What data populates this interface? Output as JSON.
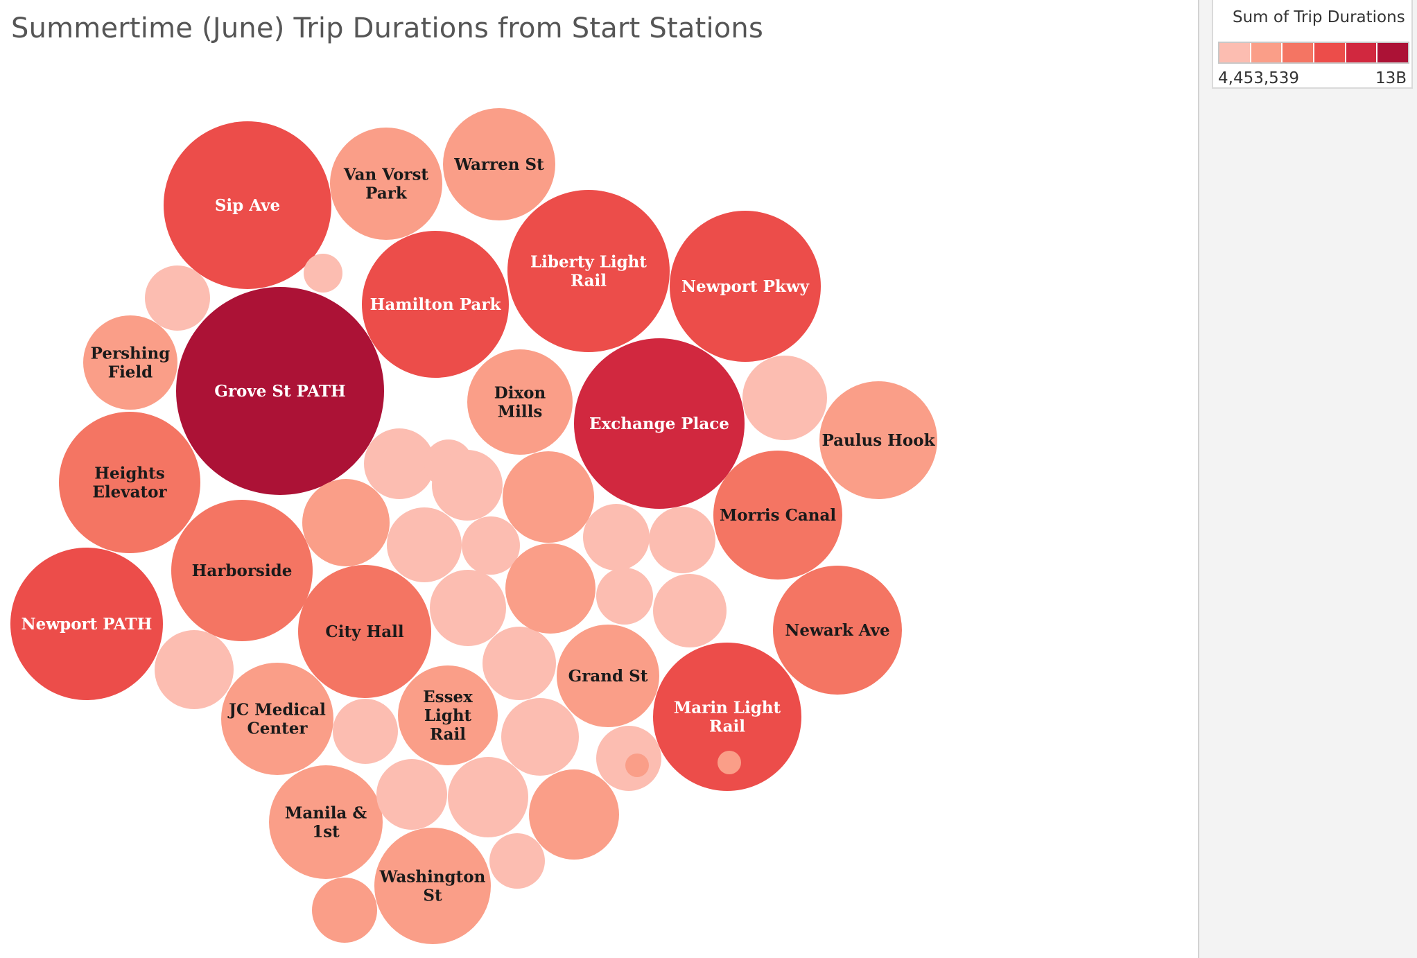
{
  "title": "Summertime (June) Trip Durations from Start Stations",
  "legend": {
    "title": "Sum of Trip Durations",
    "min_label": "4,453,539",
    "max_label": "13B",
    "ramp_colors": [
      "#fcbdb1",
      "#fa9e88",
      "#f47563",
      "#ec4d4a",
      "#d1283f",
      "#ac1236"
    ]
  },
  "colors": {
    "text_dark": "#1a1a1a",
    "text_light": "#ffffff"
  },
  "chart_data": {
    "type": "bubble",
    "measure": "Sum of Trip Durations",
    "series": [
      {
        "label": "Grove St PATH",
        "color_level": 5
      },
      {
        "label": "Exchange Place",
        "color_level": 4
      },
      {
        "label": "Sip Ave",
        "color_level": 3
      },
      {
        "label": "Liberty Light Rail",
        "color_level": 3
      },
      {
        "label": "Newport Pkwy",
        "color_level": 3
      },
      {
        "label": "Hamilton Park",
        "color_level": 3
      },
      {
        "label": "Newport PATH",
        "color_level": 3
      },
      {
        "label": "Marin Light Rail",
        "color_level": 3
      },
      {
        "label": "Heights Elevator",
        "color_level": 2
      },
      {
        "label": "Harborside",
        "color_level": 2
      },
      {
        "label": "City Hall",
        "color_level": 2
      },
      {
        "label": "Morris Canal",
        "color_level": 2
      },
      {
        "label": "Newark Ave",
        "color_level": 2
      },
      {
        "label": "Paulus Hook",
        "color_level": 1
      },
      {
        "label": "Van Vorst Park",
        "color_level": 1
      },
      {
        "label": "Warren St",
        "color_level": 1
      },
      {
        "label": "Dixon Mills",
        "color_level": 1
      },
      {
        "label": "Pershing Field",
        "color_level": 1
      },
      {
        "label": "JC Medical Center",
        "color_level": 1
      },
      {
        "label": "Essex Light Rail",
        "color_level": 1
      },
      {
        "label": "Grand St",
        "color_level": 1
      },
      {
        "label": "Manila & 1st",
        "color_level": 1
      },
      {
        "label": "Washington St",
        "color_level": 1
      },
      {
        "label": "",
        "color_level": 0
      },
      {
        "label": "",
        "color_level": 0
      },
      {
        "label": "",
        "color_level": 0
      },
      {
        "label": "",
        "color_level": 0
      },
      {
        "label": "",
        "color_level": 0
      },
      {
        "label": "",
        "color_level": 0
      },
      {
        "label": "",
        "color_level": 0
      },
      {
        "label": "",
        "color_level": 0
      },
      {
        "label": "",
        "color_level": 0
      },
      {
        "label": "",
        "color_level": 0
      },
      {
        "label": "",
        "color_level": 0
      },
      {
        "label": "",
        "color_level": 0
      },
      {
        "label": "",
        "color_level": 0
      },
      {
        "label": "",
        "color_level": 0
      },
      {
        "label": "",
        "color_level": 0
      },
      {
        "label": "",
        "color_level": 0
      },
      {
        "label": "",
        "color_level": 0
      },
      {
        "label": "",
        "color_level": 0
      },
      {
        "label": "",
        "color_level": 0
      },
      {
        "label": "",
        "color_level": 0
      },
      {
        "label": "",
        "color_level": 0
      },
      {
        "label": "",
        "color_level": 1
      },
      {
        "label": "",
        "color_level": 1
      },
      {
        "label": "",
        "color_level": 1
      },
      {
        "label": "",
        "color_level": 1
      },
      {
        "label": "",
        "color_level": 1
      },
      {
        "label": "",
        "color_level": 1
      },
      {
        "label": "",
        "color_level": 1
      }
    ]
  }
}
